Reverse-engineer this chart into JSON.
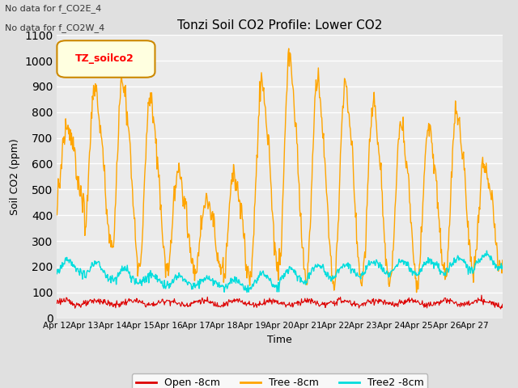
{
  "title": "Tonzi Soil CO2 Profile: Lower CO2",
  "ylabel": "Soil CO2 (ppm)",
  "xlabel": "Time",
  "text_no_data": [
    "No data for f_CO2E_4",
    "No data for f_CO2W_4"
  ],
  "legend_label": "TZ_soilco2",
  "ylim": [
    0,
    1100
  ],
  "yticks": [
    0,
    100,
    200,
    300,
    400,
    500,
    600,
    700,
    800,
    900,
    1000,
    1100
  ],
  "line_colors": {
    "open": "#dd0000",
    "tree": "#ffa500",
    "tree2": "#00dddd"
  },
  "line_labels": {
    "open": "Open -8cm",
    "tree": "Tree -8cm",
    "tree2": "Tree2 -8cm"
  },
  "xtick_labels": [
    "Apr 12",
    "Apr 13",
    "Apr 14",
    "Apr 15",
    "Apr 16",
    "Apr 17",
    "Apr 18",
    "Apr 19",
    "Apr 20",
    "Apr 21",
    "Apr 22",
    "Apr 23",
    "Apr 24",
    "Apr 25",
    "Apr 26",
    "Apr 27"
  ],
  "bg_color": "#e0e0e0",
  "plot_bg_color": "#ebebeb"
}
